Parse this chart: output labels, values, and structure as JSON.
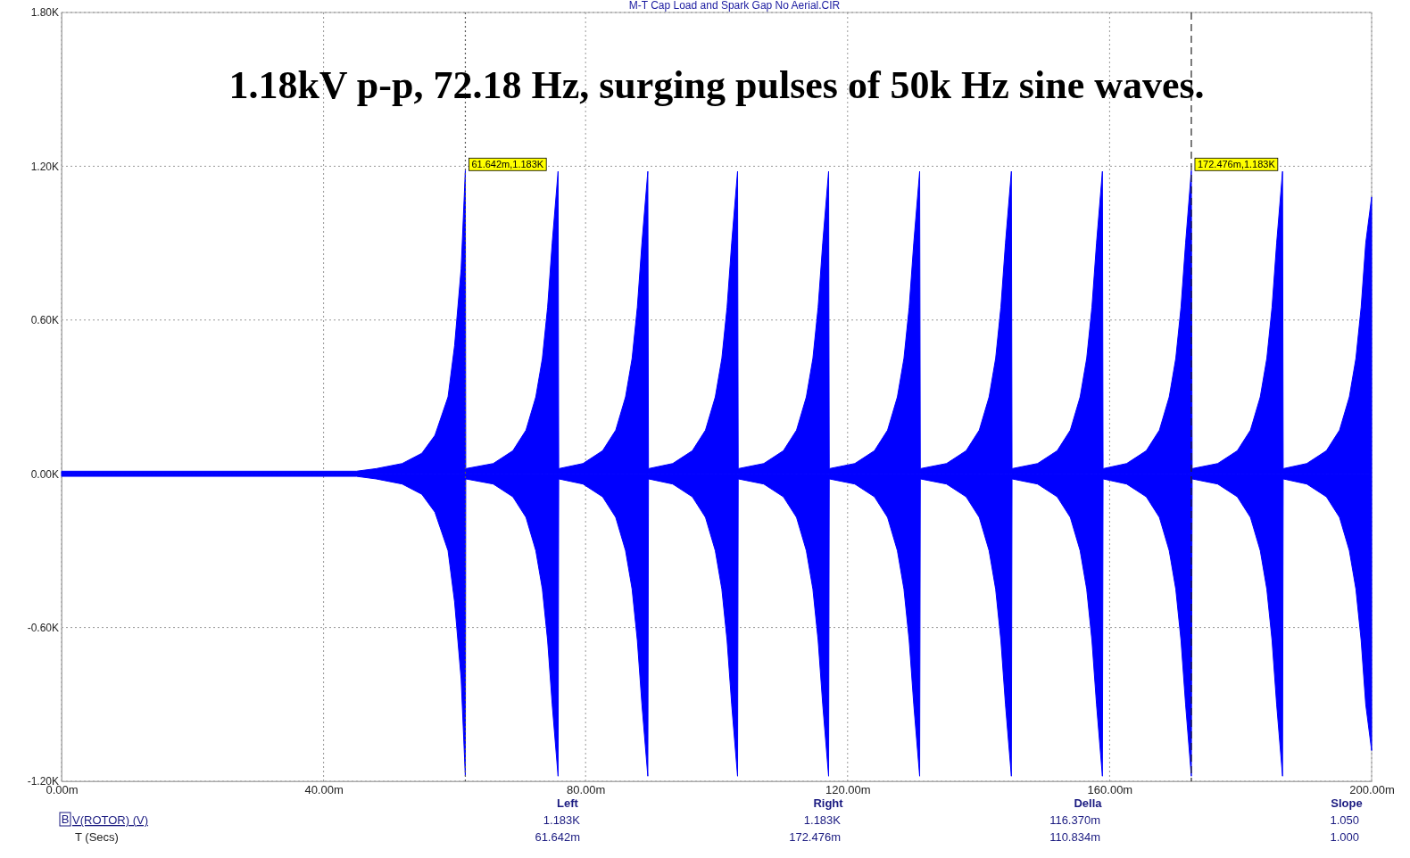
{
  "chart_data": {
    "type": "area",
    "title": "M-T Cap Load and Spark Gap No Aerial.CIR",
    "subtitle": "1.18kV p-p, 72.18 Hz, surging pulses of 50k Hz sine waves.",
    "x": [
      0,
      45,
      48,
      52,
      55,
      57,
      59,
      60,
      61,
      61.642,
      61.7,
      65.9,
      68.9,
      70.9,
      72.4,
      73.4,
      74.2,
      74.9,
      75.8,
      75.9,
      79.6,
      82.6,
      84.6,
      86.1,
      87.1,
      87.9,
      88.6,
      89.5,
      89.6,
      93.3,
      96.3,
      98.3,
      99.8,
      100.8,
      101.6,
      102.3,
      103.2,
      103.3,
      107.2,
      110.2,
      112.2,
      113.7,
      114.7,
      115.5,
      116.2,
      117.1,
      117.2,
      121.1,
      124.1,
      126.1,
      127.6,
      128.6,
      129.4,
      130.1,
      131,
      131.1,
      135.1,
      138.1,
      140.1,
      141.6,
      142.6,
      143.4,
      144.1,
      145,
      145.1,
      149,
      152,
      154,
      155.5,
      156.5,
      157.3,
      158,
      158.9,
      159,
      162.6,
      165.6,
      167.6,
      169.1,
      170.1,
      170.9,
      171.6,
      172.476,
      172.6,
      176.5,
      179.5,
      181.5,
      183,
      184,
      184.8,
      185.5,
      186.4,
      186.5,
      190.1,
      193.1,
      195.1,
      196.6,
      197.6,
      198.4,
      199.1,
      200
    ],
    "series": [
      {
        "color": "#0000ff",
        "values": [
          10,
          10,
          20,
          40,
          80,
          150,
          300,
          500,
          800,
          1183,
          20,
          40,
          90,
          170,
          300,
          450,
          650,
          900,
          1180,
          20,
          40,
          90,
          170,
          300,
          450,
          650,
          900,
          1180,
          20,
          40,
          90,
          170,
          300,
          450,
          650,
          900,
          1180,
          20,
          40,
          90,
          170,
          300,
          450,
          650,
          900,
          1180,
          20,
          40,
          90,
          170,
          300,
          450,
          650,
          900,
          1180,
          20,
          40,
          90,
          170,
          300,
          450,
          650,
          900,
          1180,
          20,
          40,
          90,
          170,
          300,
          450,
          650,
          900,
          1180,
          20,
          40,
          90,
          170,
          300,
          450,
          650,
          900,
          1183,
          20,
          40,
          90,
          170,
          300,
          450,
          650,
          900,
          1180,
          20,
          40,
          90,
          170,
          300,
          450,
          650,
          900,
          1080
        ]
      },
      {
        "color": "#0000ff",
        "values": [
          -10,
          -10,
          -20,
          -40,
          -80,
          -150,
          -300,
          -500,
          -800,
          -1180,
          -20,
          -40,
          -90,
          -170,
          -300,
          -450,
          -650,
          -900,
          -1180,
          -20,
          -40,
          -90,
          -170,
          -300,
          -450,
          -650,
          -900,
          -1180,
          -20,
          -40,
          -90,
          -170,
          -300,
          -450,
          -650,
          -900,
          -1180,
          -20,
          -40,
          -90,
          -170,
          -300,
          -450,
          -650,
          -900,
          -1180,
          -20,
          -40,
          -90,
          -170,
          -300,
          -450,
          -650,
          -900,
          -1180,
          -20,
          -40,
          -90,
          -170,
          -300,
          -450,
          -650,
          -900,
          -1180,
          -20,
          -40,
          -90,
          -170,
          -300,
          -450,
          -650,
          -900,
          -1180,
          -20,
          -40,
          -90,
          -170,
          -300,
          -450,
          -650,
          -900,
          -1180,
          -20,
          -40,
          -90,
          -170,
          -300,
          -450,
          -650,
          -900,
          -1180,
          -20,
          -40,
          -90,
          -170,
          -300,
          -450,
          -650,
          -900,
          -1080
        ]
      }
    ],
    "xlim": [
      0,
      200
    ],
    "xticks": [
      {
        "value": 0,
        "label": "0.00m"
      },
      {
        "value": 40,
        "label": "40.00m"
      },
      {
        "value": 80,
        "label": "80.00m"
      },
      {
        "value": 120,
        "label": "120.00m"
      },
      {
        "value": 160,
        "label": "160.00m"
      },
      {
        "value": 200,
        "label": "200.00m"
      }
    ],
    "ylim": [
      -1200,
      1800
    ],
    "yticks": [
      {
        "value": -1200,
        "label": "-1.20K"
      },
      {
        "value": -600,
        "label": "-0.60K"
      },
      {
        "value": 0,
        "label": "0.00K"
      },
      {
        "value": 600,
        "label": "0.60K"
      },
      {
        "value": 1200,
        "label": "1.20K"
      },
      {
        "value": 1800,
        "label": "1.80K"
      }
    ],
    "grid": true,
    "ref_lines": [
      {
        "axis": "x",
        "value": 61.642,
        "line_style": "dotted",
        "color": "#555555"
      },
      {
        "axis": "x",
        "value": 172.476,
        "line_style": "dashed",
        "color": "#222222"
      }
    ],
    "annotations": [
      {
        "text": "61.642m,1.183K",
        "x": 61.642,
        "y": 1183
      },
      {
        "text": "172.476m,1.183K",
        "x": 172.476,
        "y": 1183
      },
      "Left",
      "Right",
      "Della",
      "Slope",
      "V(ROTOR) (V)",
      "T (Secs)",
      "1.183K",
      "1.183K",
      "116.370m",
      "1.050",
      "61.642m",
      "172.476m",
      "110.834m",
      "1.000",
      "B"
    ]
  }
}
